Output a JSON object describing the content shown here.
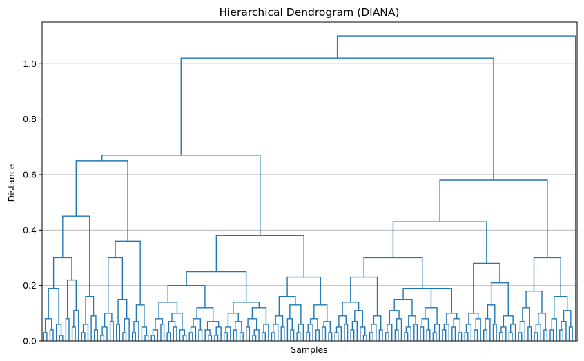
{
  "chart_data": {
    "type": "dendrogram",
    "title": "Hierarchical Dendrogram (DIANA)",
    "xlabel": "Samples",
    "ylabel": "Distance",
    "ylim": [
      0,
      1.15
    ],
    "yticks": [
      0.0,
      0.2,
      0.4,
      0.6,
      0.8,
      1.0
    ],
    "ytick_labels": [
      "0.0",
      "0.2",
      "0.4",
      "0.6",
      "0.8",
      "1.0"
    ],
    "grid": "y-major",
    "link_color": "#1f77b4",
    "tree": [
      1.1,
      [
        1.02,
        [
          0.67,
          [
            0.65,
            [
              0.45,
              [
                0.3,
                [
                  0.19,
                  [
                    0.08,
                    [
                      0.03,
                      0,
                      0
                    ],
                    [
                      0.04,
                      0,
                      0
                    ]
                  ],
                  [
                    0.06,
                    0,
                    [
                      0.02,
                      0,
                      0
                    ]
                  ]
                ],
                [
                  0.22,
                  [
                    0.08,
                    0,
                    0
                  ],
                  [
                    0.11,
                    [
                      0.05,
                      0,
                      0
                    ],
                    0
                  ]
                ]
              ],
              [
                0.16,
                [
                  0.06,
                  [
                    0.03,
                    0,
                    0
                  ],
                  0
                ],
                [
                  0.09,
                  0,
                  [
                    0.04,
                    0,
                    0
                  ]
                ]
              ]
            ],
            [
              0.36,
              [
                0.3,
                [
                  0.1,
                  [
                    0.05,
                    [
                      0.02,
                      0,
                      0
                    ],
                    0
                  ],
                  [
                    0.07,
                    0,
                    0
                  ]
                ],
                [
                  0.15,
                  [
                    0.06,
                    0,
                    0
                  ],
                  [
                    0.08,
                    [
                      0.03,
                      0,
                      0
                    ],
                    0
                  ]
                ]
              ],
              [
                0.13,
                [
                  0.07,
                  [
                    0.03,
                    0,
                    0
                  ],
                  0
                ],
                [
                  0.05,
                  0,
                  [
                    0.02,
                    0,
                    0
                  ]
                ]
              ]
            ]
          ],
          [
            0.38,
            [
              0.25,
              [
                0.2,
                [
                  0.14,
                  [
                    0.08,
                    [
                      0.04,
                      [
                        0.02,
                        0,
                        0
                      ],
                      0
                    ],
                    [
                      0.06,
                      0,
                      0
                    ]
                  ],
                  [
                    0.1,
                    [
                      0.07,
                      [
                        0.03,
                        0,
                        0
                      ],
                      [
                        0.05,
                        0,
                        0
                      ]
                    ],
                    [
                      0.04,
                      0,
                      [
                        0.02,
                        0,
                        0
                      ]
                    ]
                  ]
                ],
                [
                  0.12,
                  [
                    0.08,
                    [
                      0.05,
                      [
                        0.03,
                        0,
                        0
                      ],
                      0
                    ],
                    [
                      0.04,
                      0,
                      0
                    ]
                  ],
                  [
                    0.07,
                    [
                      0.04,
                      0,
                      [
                        0.02,
                        0,
                        0
                      ]
                    ],
                    [
                      0.05,
                      [
                        0.02,
                        0,
                        0
                      ],
                      0
                    ]
                  ]
                ]
              ],
              [
                0.14,
                [
                  0.1,
                  [
                    0.05,
                    [
                      0.03,
                      0,
                      0
                    ],
                    0
                  ],
                  [
                    0.07,
                    [
                      0.04,
                      0,
                      0
                    ],
                    [
                      0.03,
                      0,
                      0
                    ]
                  ]
                ],
                [
                  0.12,
                  [
                    0.08,
                    [
                      0.05,
                      0,
                      0
                    ],
                    [
                      0.04,
                      [
                        0.02,
                        0,
                        0
                      ],
                      0
                    ]
                  ],
                  [
                    0.06,
                    [
                      0.03,
                      0,
                      0
                    ],
                    0
                  ]
                ]
              ]
            ],
            [
              0.23,
              [
                0.16,
                [
                  0.09,
                  [
                    0.06,
                    [
                      0.03,
                      0,
                      0
                    ],
                    0
                  ],
                  [
                    0.05,
                    0,
                    0
                  ]
                ],
                [
                  0.13,
                  [
                    0.08,
                    0,
                    [
                      0.04,
                      0,
                      0
                    ]
                  ],
                  [
                    0.06,
                    [
                      0.03,
                      0,
                      0
                    ],
                    0
                  ]
                ]
              ],
              [
                0.13,
                [
                  0.08,
                  [
                    0.06,
                    [
                      0.03,
                      0,
                      0
                    ],
                    0
                  ],
                  [
                    0.04,
                    0,
                    0
                  ]
                ],
                [
                  0.07,
                  [
                    0.05,
                    0,
                    0
                  ],
                  [
                    0.03,
                    0,
                    0
                  ]
                ]
              ]
            ]
          ]
        ],
        [
          0.58,
          [
            0.43,
            [
              0.3,
              [
                0.23,
                [
                  0.14,
                  [
                    0.09,
                    [
                      0.05,
                      [
                        0.03,
                        0,
                        0
                      ],
                      0
                    ],
                    [
                      0.06,
                      0,
                      0
                    ]
                  ],
                  [
                    0.11,
                    [
                      0.07,
                      [
                        0.04,
                        0,
                        0
                      ],
                      0
                    ],
                    [
                      0.05,
                      0,
                      [
                        0.02,
                        0,
                        0
                      ]
                    ]
                  ]
                ],
                [
                  0.09,
                  [
                    0.06,
                    [
                      0.03,
                      0,
                      0
                    ],
                    0
                  ],
                  [
                    0.04,
                    0,
                    0
                  ]
                ]
              ],
              [
                0.19,
                [
                  0.15,
                  [
                    0.11,
                    [
                      0.06,
                      [
                        0.03,
                        0,
                        0
                      ],
                      0
                    ],
                    [
                      0.08,
                      [
                        0.04,
                        0,
                        0
                      ],
                      0
                    ]
                  ],
                  [
                    0.09,
                    [
                      0.05,
                      [
                        0.03,
                        0,
                        0
                      ],
                      0
                    ],
                    [
                      0.06,
                      0,
                      0
                    ]
                  ]
                ],
                [
                  0.19,
                  [
                    0.12,
                    [
                      0.08,
                      [
                        0.05,
                        0,
                        0
                      ],
                      [
                        0.04,
                        0,
                        0
                      ]
                    ],
                    [
                      0.06,
                      [
                        0.03,
                        0,
                        0
                      ],
                      0
                    ]
                  ],
                  [
                    0.1,
                    [
                      0.06,
                      [
                        0.04,
                        0,
                        0
                      ],
                      0
                    ],
                    [
                      0.08,
                      [
                        0.05,
                        0,
                        0
                      ],
                      [
                        0.03,
                        0,
                        0
                      ]
                    ]
                  ]
                ]
              ]
            ],
            [
              0.28,
              [
                0.1,
                [
                  0.06,
                  [
                    0.03,
                    0,
                    0
                  ],
                  0
                ],
                [
                  0.08,
                  [
                    0.04,
                    0,
                    0
                  ],
                  0
                ]
              ],
              [
                0.21,
                [
                  0.13,
                  [
                    0.08,
                    [
                      0.04,
                      0,
                      0
                    ],
                    0
                  ],
                  [
                    0.06,
                    0,
                    0
                  ]
                ],
                [
                  0.09,
                  [
                    0.05,
                    [
                      0.03,
                      0,
                      0
                    ],
                    0
                  ],
                  [
                    0.06,
                    [
                      0.03,
                      0,
                      0
                    ],
                    0
                  ]
                ]
              ]
            ]
          ],
          [
            0.3,
            [
              0.18,
              [
                0.12,
                [
                  0.07,
                  [
                    0.03,
                    0,
                    0
                  ],
                  0
                ],
                [
                  0.05,
                  0,
                  0
                ]
              ],
              [
                0.1,
                [
                  0.06,
                  [
                    0.03,
                    0,
                    0
                  ],
                  0
                ],
                [
                  0.04,
                  0,
                  0
                ]
              ]
            ],
            [
              0.16,
              [
                0.08,
                [
                  0.04,
                  0,
                  0
                ],
                0
              ],
              [
                0.11,
                [
                  0.07,
                  [
                    0.04,
                    0,
                    0
                  ],
                  0
                ],
                [
                  0.05,
                  0,
                  0
                ]
              ]
            ]
          ]
        ]
      ],
      0
    ]
  }
}
